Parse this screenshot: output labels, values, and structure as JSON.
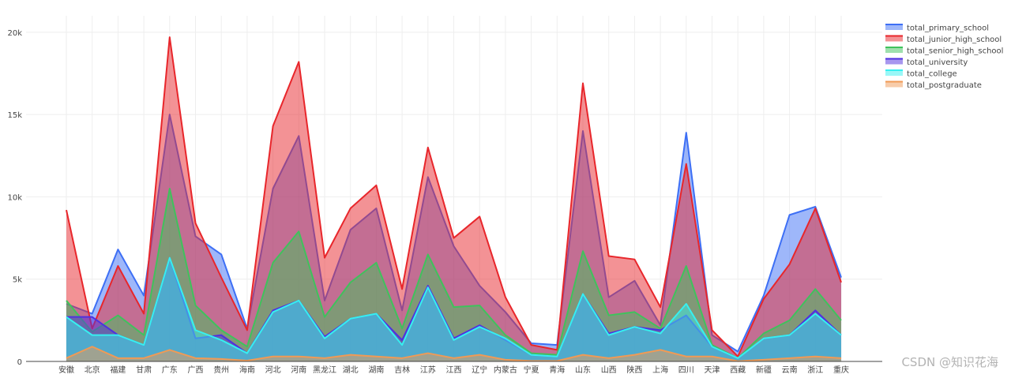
{
  "chart_data": {
    "type": "area",
    "ylim": [
      0,
      21000
    ],
    "yticks": [
      0,
      5000,
      10000,
      15000,
      20000
    ],
    "ytick_labels": [
      "0",
      "5k",
      "10k",
      "15k",
      "20k"
    ],
    "grid": true,
    "legend_position": "top-right",
    "categories": [
      "安徽",
      "北京",
      "福建",
      "甘肃",
      "广东",
      "广西",
      "贵州",
      "海南",
      "河北",
      "河南",
      "黑龙江",
      "湖北",
      "湖南",
      "吉林",
      "江苏",
      "江西",
      "辽宁",
      "内蒙古",
      "宁夏",
      "青海",
      "山东",
      "山西",
      "陕西",
      "上海",
      "四川",
      "天津",
      "西藏",
      "新疆",
      "云南",
      "浙江",
      "重庆"
    ],
    "series": [
      {
        "name": "total_primary_school",
        "color": "#3d6ff5",
        "values": [
          3500,
          2900,
          6800,
          4000,
          15000,
          7600,
          6500,
          2000,
          10500,
          13700,
          3700,
          8000,
          9300,
          3100,
          11200,
          7000,
          4600,
          3000,
          1100,
          1000,
          14000,
          3900,
          4900,
          2200,
          13900,
          1600,
          600,
          4000,
          8900,
          9400,
          5100
        ]
      },
      {
        "name": "total_junior_high_school",
        "color": "#e8262b",
        "values": [
          9200,
          2000,
          5800,
          2900,
          19700,
          8400,
          5100,
          1900,
          14300,
          18200,
          6300,
          9300,
          10700,
          4400,
          13000,
          7500,
          8800,
          3900,
          1000,
          700,
          16900,
          6400,
          6200,
          3300,
          12000,
          1900,
          300,
          3800,
          5900,
          9300,
          4800
        ]
      },
      {
        "name": "total_senior_high_school",
        "color": "#3fc25c",
        "values": [
          3700,
          1800,
          2800,
          1600,
          10500,
          3400,
          1900,
          900,
          6000,
          7900,
          2700,
          4800,
          6000,
          2000,
          6500,
          3300,
          3400,
          1600,
          500,
          400,
          6700,
          2800,
          3000,
          2000,
          5800,
          1000,
          200,
          1700,
          2500,
          4400,
          2500
        ]
      },
      {
        "name": "total_university",
        "color": "#5030e0",
        "values": [
          2700,
          2700,
          1600,
          1000,
          6300,
          1400,
          1600,
          500,
          3100,
          3700,
          1500,
          2600,
          2900,
          1300,
          4600,
          1400,
          2200,
          1300,
          400,
          300,
          4100,
          1700,
          2100,
          1900,
          2800,
          900,
          200,
          1400,
          1600,
          3100,
          1600
        ]
      },
      {
        "name": "total_college",
        "color": "#36f0f0",
        "values": [
          2700,
          1600,
          1600,
          1000,
          6300,
          1900,
          1300,
          500,
          3000,
          3700,
          1400,
          2600,
          2900,
          1000,
          4500,
          1300,
          2100,
          1400,
          400,
          300,
          4100,
          1600,
          2100,
          1700,
          3500,
          900,
          200,
          1400,
          1600,
          2900,
          1600
        ]
      },
      {
        "name": "total_postgraduate",
        "color": "#f09a55",
        "values": [
          200,
          900,
          200,
          200,
          700,
          200,
          150,
          50,
          300,
          300,
          200,
          400,
          300,
          200,
          500,
          200,
          400,
          100,
          30,
          30,
          400,
          200,
          400,
          700,
          300,
          300,
          20,
          100,
          200,
          300,
          200
        ]
      }
    ]
  },
  "watermark": "CSDN @知识花海"
}
